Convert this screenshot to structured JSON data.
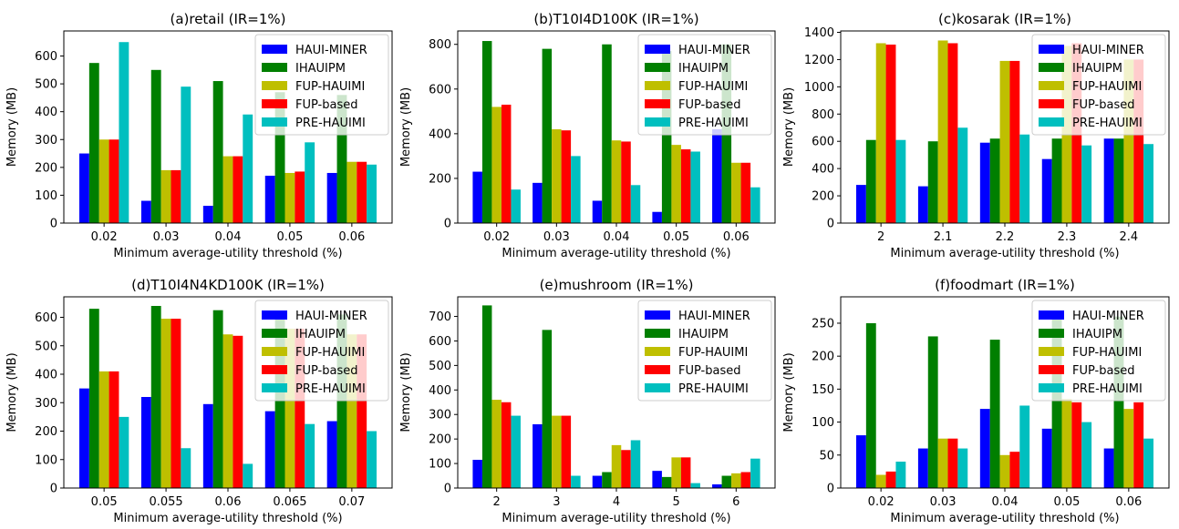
{
  "legend": [
    "HAUI-MINER",
    "IHAUIPM",
    "FUP-HAUIMI",
    "FUP-based",
    "PRE-HAUIMI"
  ],
  "colors": [
    "#0000ff",
    "#007f00",
    "#bfbf00",
    "#ff0000",
    "#00bfbf"
  ],
  "chart_data": [
    {
      "type": "bar",
      "title": "(a)retail (IR=1%)",
      "xlabel": "Minimum average-utility threshold (%)",
      "ylabel": "Memory (MB)",
      "categories": [
        "0.02",
        "0.03",
        "0.04",
        "0.05",
        "0.06"
      ],
      "ylim": [
        0,
        690
      ],
      "yticks": [
        0,
        100,
        200,
        300,
        400,
        500,
        600
      ],
      "legend_position": "top-right",
      "series": [
        {
          "name": "HAUI-MINER",
          "values": [
            250,
            80,
            62,
            170,
            180
          ]
        },
        {
          "name": "IHAUIPM",
          "values": [
            575,
            550,
            510,
            470,
            460
          ]
        },
        {
          "name": "FUP-HAUIMI",
          "values": [
            300,
            190,
            240,
            180,
            220
          ]
        },
        {
          "name": "FUP-based",
          "values": [
            300,
            190,
            240,
            185,
            220
          ]
        },
        {
          "name": "PRE-HAUIMI",
          "values": [
            650,
            490,
            390,
            290,
            210
          ]
        }
      ]
    },
    {
      "type": "bar",
      "title": "(b)T10I4D100K (IR=1%)",
      "xlabel": "Minimum average-utility threshold (%)",
      "ylabel": "Memory (MB)",
      "categories": [
        "0.02",
        "0.03",
        "0.04",
        "0.05",
        "0.06"
      ],
      "ylim": [
        0,
        860
      ],
      "yticks": [
        0,
        200,
        400,
        600,
        800
      ],
      "legend_position": "top-right",
      "series": [
        {
          "name": "HAUI-MINER",
          "values": [
            230,
            180,
            100,
            50,
            420
          ]
        },
        {
          "name": "IHAUIPM",
          "values": [
            815,
            780,
            800,
            770,
            800
          ]
        },
        {
          "name": "FUP-HAUIMI",
          "values": [
            520,
            420,
            370,
            350,
            270
          ]
        },
        {
          "name": "FUP-based",
          "values": [
            530,
            415,
            365,
            330,
            270
          ]
        },
        {
          "name": "PRE-HAUIMI",
          "values": [
            150,
            300,
            170,
            320,
            160
          ]
        }
      ]
    },
    {
      "type": "bar",
      "title": "(c)kosarak (IR=1%)",
      "xlabel": "Minimum average-utility threshold (%)",
      "ylabel": "Memory (MB)",
      "categories": [
        "2",
        "2.1",
        "2.2",
        "2.3",
        "2.4"
      ],
      "ylim": [
        0,
        1410
      ],
      "yticks": [
        0,
        200,
        400,
        600,
        800,
        1000,
        1200,
        1400
      ],
      "legend_position": "top-right",
      "series": [
        {
          "name": "HAUI-MINER",
          "values": [
            280,
            270,
            590,
            470,
            620
          ]
        },
        {
          "name": "IHAUIPM",
          "values": [
            610,
            600,
            620,
            620,
            620
          ]
        },
        {
          "name": "FUP-HAUIMI",
          "values": [
            1320,
            1340,
            1190,
            1300,
            1200
          ]
        },
        {
          "name": "FUP-based",
          "values": [
            1310,
            1320,
            1190,
            1320,
            1200
          ]
        },
        {
          "name": "PRE-HAUIMI",
          "values": [
            610,
            700,
            650,
            570,
            580
          ]
        }
      ]
    },
    {
      "type": "bar",
      "title": "(d)T10I4N4KD100K (IR=1%)",
      "xlabel": "Minimum average-utility threshold (%)",
      "ylabel": "Memory (MB)",
      "categories": [
        "0.05",
        "0.055",
        "0.06",
        "0.065",
        "0.07"
      ],
      "ylim": [
        0,
        672
      ],
      "yticks": [
        0,
        100,
        200,
        300,
        400,
        500,
        600
      ],
      "legend_position": "top-right",
      "series": [
        {
          "name": "HAUI-MINER",
          "values": [
            350,
            320,
            295,
            270,
            235
          ]
        },
        {
          "name": "IHAUIPM",
          "values": [
            630,
            640,
            625,
            620,
            610
          ]
        },
        {
          "name": "FUP-HAUIMI",
          "values": [
            410,
            595,
            540,
            560,
            540
          ]
        },
        {
          "name": "FUP-based",
          "values": [
            410,
            595,
            535,
            560,
            540
          ]
        },
        {
          "name": "PRE-HAUIMI",
          "values": [
            250,
            140,
            85,
            225,
            200
          ]
        }
      ]
    },
    {
      "type": "bar",
      "title": "(e)mushroom (IR=1%)",
      "xlabel": "Minimum average-utility threshold (%)",
      "ylabel": "Memory (MB)",
      "categories": [
        "2",
        "3",
        "4",
        "5",
        "6"
      ],
      "ylim": [
        0,
        780
      ],
      "yticks": [
        0,
        100,
        200,
        300,
        400,
        500,
        600,
        700
      ],
      "legend_position": "top-right",
      "series": [
        {
          "name": "HAUI-MINER",
          "values": [
            115,
            260,
            50,
            70,
            15
          ]
        },
        {
          "name": "IHAUIPM",
          "values": [
            745,
            645,
            65,
            45,
            50
          ]
        },
        {
          "name": "FUP-HAUIMI",
          "values": [
            360,
            295,
            175,
            125,
            60
          ]
        },
        {
          "name": "FUP-based",
          "values": [
            350,
            295,
            155,
            125,
            65
          ]
        },
        {
          "name": "PRE-HAUIMI",
          "values": [
            295,
            50,
            195,
            20,
            120
          ]
        }
      ]
    },
    {
      "type": "bar",
      "title": "(f)foodmart (IR=1%)",
      "xlabel": "Minimum average-utility threshold (%)",
      "ylabel": "Memory (MB)",
      "categories": [
        "0.02",
        "0.03",
        "0.04",
        "0.05",
        "0.06"
      ],
      "ylim": [
        0,
        290
      ],
      "yticks": [
        0,
        50,
        100,
        150,
        200,
        250
      ],
      "legend_position": "top-right",
      "series": [
        {
          "name": "HAUI-MINER",
          "values": [
            80,
            60,
            120,
            90,
            60
          ]
        },
        {
          "name": "IHAUIPM",
          "values": [
            250,
            230,
            225,
            260,
            260
          ]
        },
        {
          "name": "FUP-HAUIMI",
          "values": [
            20,
            75,
            50,
            135,
            120
          ]
        },
        {
          "name": "FUP-based",
          "values": [
            25,
            75,
            55,
            130,
            130
          ]
        },
        {
          "name": "PRE-HAUIMI",
          "values": [
            40,
            60,
            125,
            100,
            75
          ]
        }
      ]
    }
  ]
}
